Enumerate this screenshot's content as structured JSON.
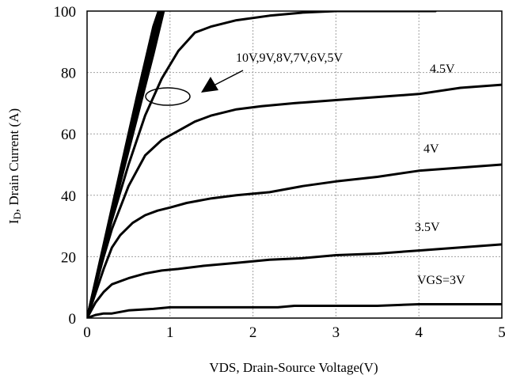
{
  "chart_data": {
    "type": "line",
    "xlabel": "VDS, Drain-Source Voltage(V)",
    "ylabel_prefix": "I",
    "ylabel_sub": "D",
    "ylabel_suffix": ", Drain Current (A)",
    "xlim": [
      0,
      5
    ],
    "ylim": [
      0,
      100
    ],
    "xticks": [
      0,
      1,
      2,
      3,
      4,
      5
    ],
    "yticks": [
      0,
      20,
      40,
      60,
      80,
      100
    ],
    "grid": true,
    "series": [
      {
        "name": "10V",
        "label_id": "10v",
        "x": [
          0,
          0.2,
          0.4,
          0.6,
          0.8,
          0.9
        ],
        "y": [
          0,
          24,
          48,
          72,
          95,
          103
        ]
      },
      {
        "name": "9V",
        "label_id": "9v",
        "x": [
          0,
          0.2,
          0.4,
          0.6,
          0.8,
          0.91
        ],
        "y": [
          0,
          23.5,
          47,
          71,
          93,
          103
        ]
      },
      {
        "name": "8V",
        "label_id": "8v",
        "x": [
          0,
          0.2,
          0.4,
          0.6,
          0.8,
          0.92
        ],
        "y": [
          0,
          23,
          46,
          69,
          91,
          103
        ]
      },
      {
        "name": "7V",
        "label_id": "7v",
        "x": [
          0,
          0.2,
          0.4,
          0.6,
          0.8,
          0.93
        ],
        "y": [
          0,
          22.5,
          45,
          67,
          89,
          103
        ]
      },
      {
        "name": "6V",
        "label_id": "6v",
        "x": [
          0,
          0.2,
          0.4,
          0.6,
          0.8,
          0.95
        ],
        "y": [
          0,
          22,
          44,
          65,
          86,
          103
        ]
      },
      {
        "name": "5V",
        "label_id": "5v",
        "x": [
          0,
          0.1,
          0.3,
          0.5,
          0.7,
          0.9,
          1.1,
          1.3,
          1.5,
          1.8,
          2.2,
          2.6,
          3,
          3.5,
          4,
          4.2
        ],
        "y": [
          0,
          11,
          32,
          50,
          66,
          78,
          87,
          93,
          95,
          97,
          98.5,
          99.5,
          100,
          100,
          100,
          100
        ]
      },
      {
        "name": "4.5V",
        "label_id": "4-5v",
        "x": [
          0,
          0.1,
          0.2,
          0.3,
          0.5,
          0.7,
          0.9,
          1.1,
          1.3,
          1.5,
          1.8,
          2.1,
          2.5,
          3,
          3.5,
          4,
          4.5,
          5
        ],
        "y": [
          0,
          10,
          20,
          29,
          43,
          53,
          58,
          61,
          64,
          66,
          68,
          69,
          70,
          71,
          72,
          73,
          75,
          76
        ]
      },
      {
        "name": "4V",
        "label_id": "4v",
        "x": [
          0,
          0.1,
          0.2,
          0.3,
          0.4,
          0.55,
          0.7,
          0.85,
          1,
          1.2,
          1.5,
          1.8,
          2.2,
          2.6,
          3,
          3.5,
          4,
          4.5,
          5
        ],
        "y": [
          0,
          8,
          16,
          23,
          27,
          31,
          33.5,
          35,
          36,
          37.5,
          39,
          40,
          41,
          43,
          44.5,
          46,
          48,
          49,
          50
        ]
      },
      {
        "name": "3.5V",
        "label_id": "3-5v",
        "x": [
          0,
          0.1,
          0.2,
          0.3,
          0.5,
          0.7,
          0.9,
          1.1,
          1.4,
          1.8,
          2.2,
          2.6,
          3,
          3.5,
          4,
          4.5,
          5
        ],
        "y": [
          0,
          5,
          8.5,
          11,
          13,
          14.5,
          15.5,
          16,
          17,
          18,
          19,
          19.5,
          20.5,
          21,
          22,
          23,
          24
        ]
      },
      {
        "name": "VGS=3V",
        "label_id": "3v",
        "x": [
          0,
          0.1,
          0.2,
          0.3,
          0.5,
          0.8,
          1,
          1.5,
          2,
          2.3,
          2.5,
          3,
          3.5,
          4,
          4.5,
          5
        ],
        "y": [
          0,
          1,
          1.5,
          1.5,
          2.5,
          3,
          3.5,
          3.5,
          3.5,
          3.5,
          4,
          4,
          4,
          4.5,
          4.5,
          4.5
        ]
      }
    ],
    "annotations": {
      "group_label": "10V,9V,8V,7V,6V,5V",
      "label_4_5v": "4.5V",
      "label_4v": "4V",
      "label_3_5v": "3.5V",
      "label_3v": "VGS=3V"
    }
  }
}
